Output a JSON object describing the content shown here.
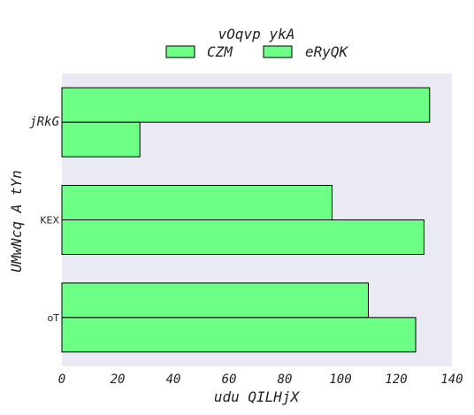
{
  "chart_data": {
    "type": "bar",
    "orientation": "horizontal",
    "title": "vOqvp ykA",
    "xlabel": "udu QILHjX",
    "ylabel": "UMwNcq A tYn",
    "categories": [
      "jRkG",
      "KEX",
      "oT"
    ],
    "series": [
      {
        "name": "CZM",
        "values": [
          132,
          97,
          110
        ]
      },
      {
        "name": "eRyQK",
        "values": [
          28,
          130,
          127
        ]
      }
    ],
    "xlim": [
      0,
      140
    ],
    "xticks": [
      0,
      20,
      40,
      60,
      80,
      100,
      120,
      140
    ],
    "grid": false,
    "legend_position": "top-center",
    "colors": {
      "bar_fill": "#6dff85",
      "bar_edge": "#000000",
      "plot_background": "#e9eaf3"
    }
  }
}
